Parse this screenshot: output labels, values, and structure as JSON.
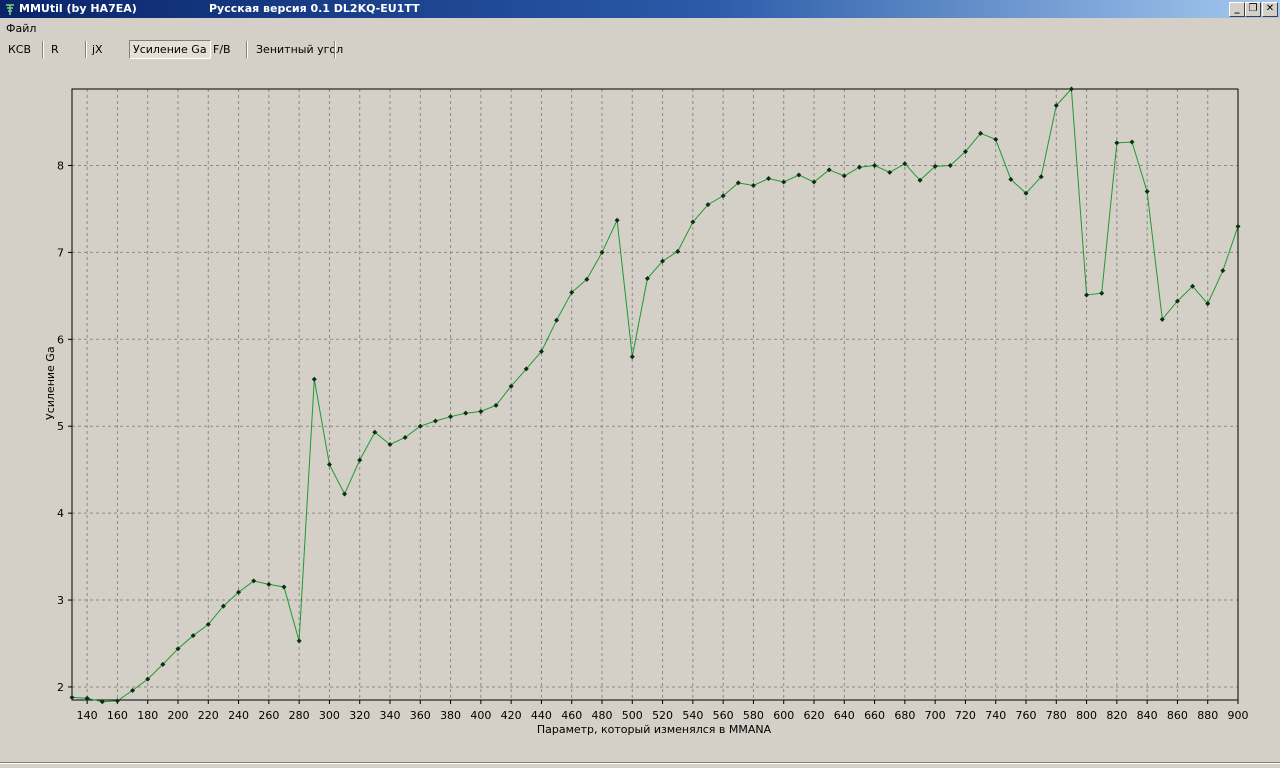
{
  "window": {
    "title": "MMUtil (by HA7EA)",
    "version": "Русская версия 0.1 DL2KQ-EU1TT",
    "minimize": "_",
    "restore": "❐",
    "close": "✕"
  },
  "menu": {
    "file": "Файл"
  },
  "tabs": {
    "swr": "КСВ",
    "r": "R",
    "x": "jX",
    "gain": "Усиление Ga",
    "fb": "F/B",
    "zenith": "Зенитный угол"
  },
  "colors": {
    "line": "#1f9a2f",
    "marker": "#0b2e14",
    "grid": "#8a8a8a"
  },
  "chart_data": {
    "type": "line",
    "xlabel": "Параметр, который изменялся в MMANA",
    "ylabel": "Усиление Ga",
    "xlim": [
      130,
      900
    ],
    "ylim": [
      1.85,
      8.88
    ],
    "xticks": [
      140,
      160,
      180,
      200,
      220,
      240,
      260,
      280,
      300,
      320,
      340,
      360,
      380,
      400,
      420,
      440,
      460,
      480,
      500,
      520,
      540,
      560,
      580,
      600,
      620,
      640,
      660,
      680,
      700,
      720,
      740,
      760,
      780,
      800,
      820,
      840,
      860,
      880,
      900
    ],
    "yticks": [
      2,
      3,
      4,
      5,
      6,
      7,
      8
    ],
    "grid": true,
    "series": [
      {
        "x": [
          130,
          140,
          150,
          160,
          170,
          180,
          190,
          200,
          210,
          220,
          230,
          240,
          250,
          260,
          270,
          280,
          290,
          300,
          310,
          320,
          330,
          340,
          350,
          360,
          370,
          380,
          390,
          400,
          410,
          420,
          430,
          440,
          450,
          460,
          470,
          480,
          490,
          500,
          510,
          520,
          530,
          540,
          550,
          560,
          570,
          580,
          590,
          600,
          610,
          620,
          630,
          640,
          650,
          660,
          670,
          680,
          690,
          700,
          710,
          720,
          730,
          740,
          750,
          760,
          770,
          780,
          790,
          800,
          810,
          820,
          830,
          840,
          850,
          860,
          870,
          880,
          890,
          900
        ],
        "values": [
          1.88,
          1.87,
          1.83,
          1.84,
          1.96,
          2.09,
          2.26,
          2.44,
          2.59,
          2.72,
          2.93,
          3.09,
          3.22,
          3.18,
          3.15,
          2.53,
          5.54,
          4.56,
          4.22,
          4.61,
          4.93,
          4.79,
          4.87,
          5.0,
          5.06,
          5.11,
          5.15,
          5.17,
          5.24,
          5.46,
          5.66,
          5.86,
          6.22,
          6.54,
          6.69,
          7.0,
          7.37,
          5.8,
          6.7,
          6.9,
          7.01,
          7.35,
          7.55,
          7.65,
          7.8,
          7.77,
          7.85,
          7.81,
          7.89,
          7.81,
          7.95,
          7.88,
          7.98,
          8.0,
          7.92,
          8.02,
          7.83,
          7.99,
          8.0,
          8.16,
          8.37,
          8.3,
          7.84,
          7.68,
          7.87,
          8.69,
          8.88,
          6.51,
          6.53,
          8.26,
          8.27,
          7.7,
          6.23,
          6.44,
          6.61,
          6.41,
          6.79,
          7.3
        ]
      }
    ]
  }
}
